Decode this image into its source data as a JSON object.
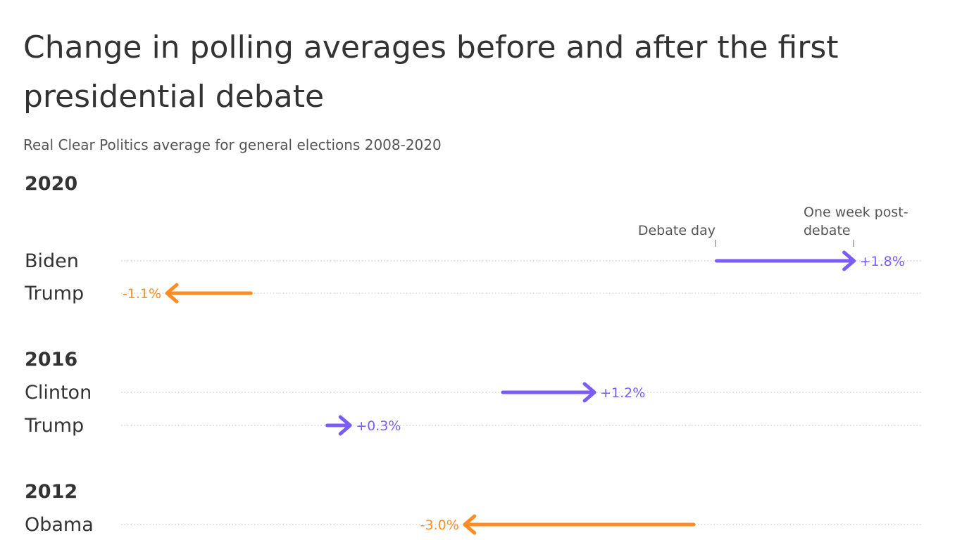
{
  "title_line1": "Change in polling averages before and after the first",
  "title_line2": "presidential debate",
  "subtitle": "Real Clear Politics average for general elections 2008-2020",
  "annotations": {
    "start": "Debate day",
    "end_line1": "One week post-",
    "end_line2": "debate"
  },
  "colors": {
    "increase": "#7b5cf5",
    "decrease": "#fb8d24",
    "text": "#333333",
    "grid": "#cccccc"
  },
  "chart_data": {
    "type": "arrow",
    "title": "Change in polling averages before and after the first presidential debate",
    "subtitle": "Real Clear Politics average for general elections 2008-2020",
    "groups": [
      {
        "year": "2020",
        "rows": [
          {
            "name": "Biden",
            "debate_day": 49.3,
            "one_week_post": 51.1,
            "label": "+1.8%"
          },
          {
            "name": "Trump",
            "debate_day": 43.2,
            "one_week_post": 42.1,
            "label": "-1.1%"
          }
        ]
      },
      {
        "year": "2016",
        "rows": [
          {
            "name": "Clinton",
            "debate_day": 46.5,
            "one_week_post": 47.7,
            "label": "+1.2%"
          },
          {
            "name": "Trump",
            "debate_day": 44.2,
            "one_week_post": 44.5,
            "label": "+0.3%"
          }
        ]
      },
      {
        "year": "2012",
        "rows": [
          {
            "name": "Obama",
            "debate_day": 49.0,
            "one_week_post": 46.0,
            "label": "-3.0%"
          }
        ]
      }
    ]
  }
}
